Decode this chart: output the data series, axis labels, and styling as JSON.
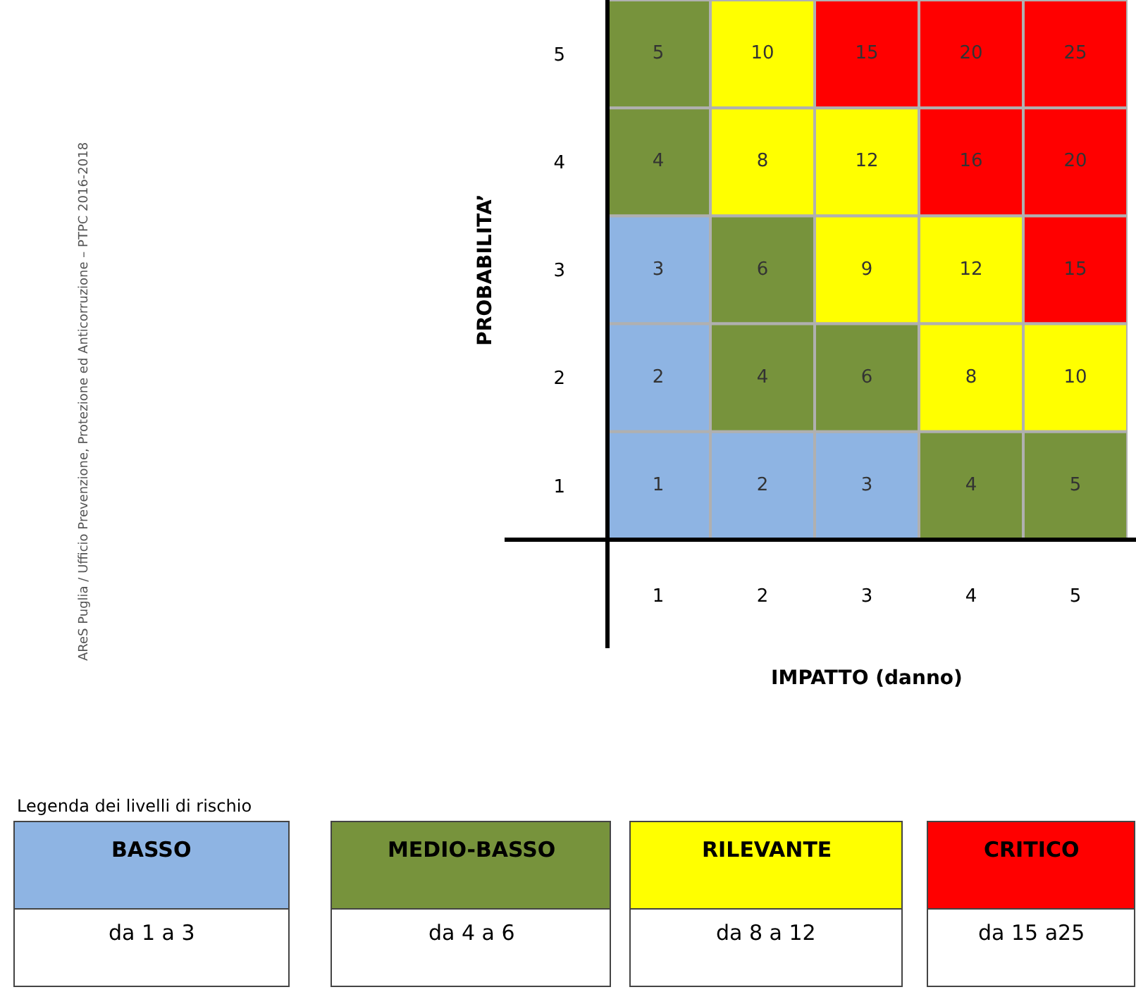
{
  "chart_data": [
    {
      "type": "heatmap",
      "xlabel": "IMPATTO (danno)",
      "ylabel": "PROBABILITA’",
      "categories": [
        "1",
        "2",
        "3",
        "4",
        "5"
      ],
      "y_categories": [
        "5",
        "4",
        "3",
        "2",
        "1"
      ],
      "cells": [
        [
          5,
          10,
          15,
          20,
          25
        ],
        [
          4,
          8,
          12,
          16,
          20
        ],
        [
          3,
          6,
          9,
          12,
          15
        ],
        [
          2,
          4,
          6,
          8,
          10
        ],
        [
          1,
          2,
          3,
          4,
          5
        ]
      ],
      "colors": [
        [
          "#77933c",
          "#ffff00",
          "#ff0000",
          "#ff0000",
          "#ff0000"
        ],
        [
          "#77933c",
          "#ffff00",
          "#ffff00",
          "#ff0000",
          "#ff0000"
        ],
        [
          "#8eb4e3",
          "#77933c",
          "#ffff00",
          "#ffff00",
          "#ff0000"
        ],
        [
          "#8eb4e3",
          "#77933c",
          "#77933c",
          "#ffff00",
          "#ffff00"
        ],
        [
          "#8eb4e3",
          "#8eb4e3",
          "#8eb4e3",
          "#77933c",
          "#77933c"
        ]
      ],
      "data_labels": true,
      "annotations": [
        "AReS Puglia / Ufficio Prevenzione, Protezione ed Anticorruzione – PTPC 2016-2018"
      ]
    },
    {
      "type": "other",
      "title": "Legenda dei livelli di rischio",
      "categories": [
        "BASSO",
        "MEDIO-BASSO",
        "RILEVANTE",
        "CRITICO"
      ],
      "colors": [
        "#8eb4e3",
        "#77933c",
        "#ffff00",
        "#ff0000"
      ],
      "annotations": [
        "da 1 a 3",
        "da 4 a 6",
        "da 8 a 12",
        "da 15 a25"
      ]
    }
  ]
}
